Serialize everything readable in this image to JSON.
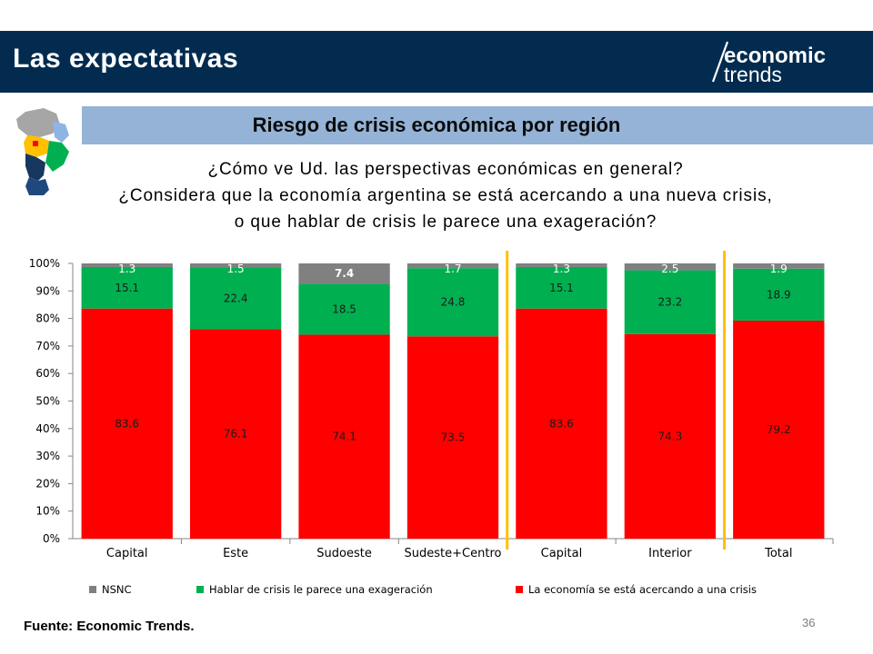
{
  "header": {
    "title": "Las expectativas"
  },
  "logo": {
    "word1": "economic",
    "word2": "trends"
  },
  "subtitle": "Riesgo de crisis económica por región",
  "questions": [
    "¿Cómo ve Ud. las perspectivas económicas en general?",
    "¿Considera que la economía argentina se está acercando a una nueva crisis,",
    "o que hablar de crisis le parece una exageración?"
  ],
  "chart_data": {
    "type": "bar",
    "stacked": true,
    "categories": [
      "Capital",
      "Este",
      "Sudoeste",
      "Sudeste+Centro",
      "Capital",
      "Interior",
      "Total"
    ],
    "series": [
      {
        "name": "La economía se está acercando a una crisis",
        "color": "#ff0000",
        "values": [
          83.6,
          76.1,
          74.1,
          73.5,
          83.6,
          74.3,
          79.2
        ]
      },
      {
        "name": "Hablar de crisis le parece una exageración",
        "color": "#00b050",
        "values": [
          15.1,
          22.4,
          18.5,
          24.8,
          15.1,
          23.2,
          18.9
        ]
      },
      {
        "name": "NSNC",
        "color": "#808080",
        "values": [
          1.3,
          1.5,
          7.4,
          1.7,
          1.3,
          2.5,
          1.9
        ]
      }
    ],
    "labels": [
      [
        "83.6",
        "76.1",
        "74.1",
        "73.5",
        "83.6",
        "74.3",
        "79.2"
      ],
      [
        "15.1",
        "22.4",
        "18.5",
        "24.8",
        "15.1",
        "23.2",
        "18.9"
      ],
      [
        "1.3",
        "1.5",
        "7.4",
        "1.7",
        "1.3",
        "2.5",
        "1.9"
      ]
    ],
    "yticks": [
      "0%",
      "10%",
      "20%",
      "30%",
      "40%",
      "50%",
      "60%",
      "70%",
      "80%",
      "90%",
      "100%"
    ],
    "ylim": [
      0,
      100
    ],
    "xlabel": "",
    "ylabel": "",
    "legend_order": [
      2,
      1,
      0
    ],
    "legend_position": "bottom",
    "separator_color": "#ffc000",
    "separators_after_category_index": [
      3,
      5
    ]
  },
  "footer": {
    "source": "Fuente: Economic Trends.",
    "page": "36"
  }
}
